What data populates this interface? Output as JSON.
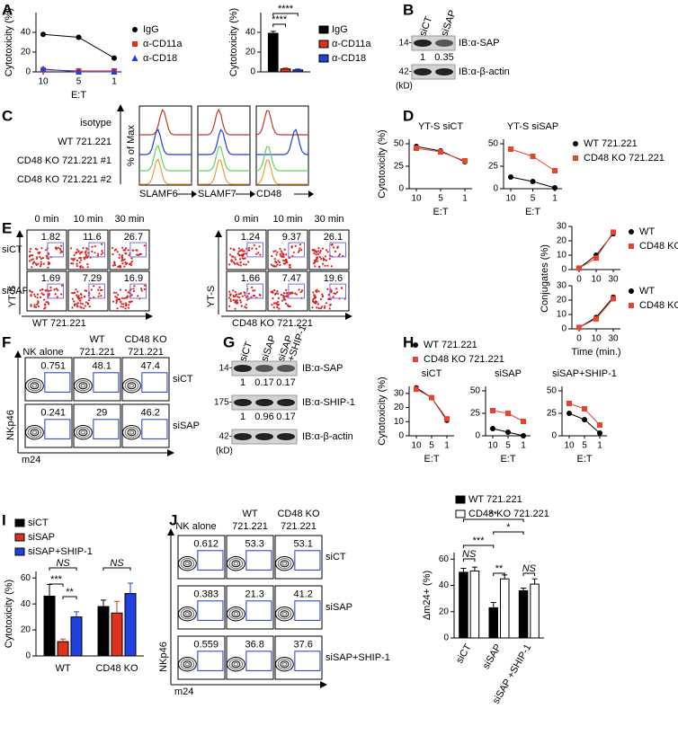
{
  "panel_labels": [
    "A",
    "B",
    "C",
    "D",
    "E",
    "F",
    "G",
    "H",
    "I",
    "J"
  ],
  "chart_data": [
    {
      "type": "line",
      "ylabel": "Cytotoxicity (%)",
      "xlabel": "E:T",
      "categories": [
        "10",
        "5",
        "1"
      ],
      "ylim": [
        0,
        60
      ],
      "yticks": [
        0,
        20,
        40
      ],
      "legend": true,
      "series": [
        {
          "name": "IgG",
          "color": "#000000",
          "marker": "circle",
          "values": [
            38,
            35,
            14
          ]
        },
        {
          "name": "α-CD11a",
          "color": "#e0301e",
          "marker": "square",
          "values": [
            2,
            1,
            1
          ]
        },
        {
          "name": "α-CD18",
          "color": "#2040e0",
          "marker": "triangle",
          "values": [
            3,
            0,
            0
          ]
        }
      ]
    },
    {
      "type": "bar",
      "ylabel": "Cytotoxicity (%)",
      "categories": [
        null
      ],
      "ylim": [
        0,
        60
      ],
      "yticks": [
        0,
        20,
        40
      ],
      "legend": true,
      "annotations": [
        "****",
        "****"
      ],
      "series": [
        {
          "name": "IgG",
          "color": "#000000",
          "values": [
            39
          ],
          "errors": [
            2
          ]
        },
        {
          "name": "α-CD11a",
          "color": "#e0301e",
          "values": [
            3
          ],
          "errors": [
            1
          ]
        },
        {
          "name": "α-CD18",
          "color": "#2040e0",
          "values": [
            2
          ],
          "errors": [
            1
          ]
        }
      ]
    },
    {
      "type": "line",
      "title": "YT-S siCT",
      "ylabel": "Cytotoxicity (%)",
      "xlabel": "E:T",
      "categories": [
        "10",
        "5",
        "1"
      ],
      "ylim": [
        0,
        55
      ],
      "yticks": [
        0,
        25,
        50
      ],
      "legend": false,
      "series": [
        {
          "color": "#000000",
          "marker": "circle",
          "values": [
            47,
            42,
            30
          ]
        },
        {
          "color": "#e8432e",
          "marker": "square",
          "values": [
            45,
            41,
            31
          ]
        }
      ]
    },
    {
      "type": "line",
      "title": "YT-S siSAP",
      "xlabel": "E:T",
      "categories": [
        "10",
        "5",
        "1"
      ],
      "ylim": [
        0,
        55
      ],
      "yticks": [
        0,
        25,
        50
      ],
      "legend": true,
      "series": [
        {
          "name": "WT 721.221",
          "color": "#000000",
          "marker": "circle",
          "values": [
            13,
            8,
            1
          ]
        },
        {
          "name": "CD48 KO 721.221",
          "color": "#e8432e",
          "marker": "square",
          "values": [
            44,
            36,
            20
          ]
        }
      ]
    },
    {
      "type": "line",
      "categories": [
        "0",
        "10",
        "30"
      ],
      "ylim": [
        0,
        30
      ],
      "yticks": [
        0,
        10,
        20,
        30
      ],
      "legend": true,
      "series": [
        {
          "name": "WT",
          "color": "#000000",
          "marker": "circle",
          "values": [
            1,
            10,
            25
          ]
        },
        {
          "name": "CD48 KO",
          "color": "#e8432e",
          "marker": "square",
          "values": [
            1,
            8,
            26
          ]
        }
      ]
    },
    {
      "type": "line",
      "ylabel": "Conjugates (%)",
      "xlabel": "Time (min.)",
      "categories": [
        "0",
        "10",
        "30"
      ],
      "ylim": [
        0,
        30
      ],
      "yticks": [
        0,
        10,
        20,
        30
      ],
      "legend": true,
      "series": [
        {
          "name": "WT",
          "color": "#000000",
          "marker": "circle",
          "values": [
            1,
            8,
            22
          ]
        },
        {
          "name": "CD48 KO",
          "color": "#e8432e",
          "marker": "square",
          "values": [
            1,
            7,
            21
          ]
        }
      ]
    },
    {
      "type": "line",
      "title": "siCT",
      "ylabel": "Cytotoxicity (%)",
      "xlabel": "E:T",
      "categories": [
        "10",
        "5",
        "1"
      ],
      "ylim": [
        0,
        35
      ],
      "yticks": [
        0,
        10,
        20,
        30
      ],
      "legend": true,
      "series": [
        {
          "name": "WT 721.221",
          "color": "#000000",
          "marker": "circle",
          "values": [
            34,
            27,
            11
          ]
        },
        {
          "name": "CD48 KO 721.221",
          "color": "#e8432e",
          "marker": "square",
          "values": [
            33,
            27,
            12
          ]
        }
      ]
    },
    {
      "type": "line",
      "title": "siSAP",
      "xlabel": "E:T",
      "categories": [
        "10",
        "5",
        "1"
      ],
      "ylim": [
        0,
        55
      ],
      "yticks": [
        0,
        25,
        50
      ],
      "legend": false,
      "series": [
        {
          "color": "#000000",
          "marker": "circle",
          "values": [
            8,
            4,
            0
          ]
        },
        {
          "color": "#e8432e",
          "marker": "square",
          "values": [
            28,
            25,
            16
          ]
        }
      ]
    },
    {
      "type": "line",
      "title": "siSAP+SHIP-1",
      "xlabel": "E:T",
      "categories": [
        "10",
        "5",
        "1"
      ],
      "ylim": [
        0,
        55
      ],
      "yticks": [
        0,
        25,
        50
      ],
      "legend": false,
      "series": [
        {
          "color": "#000000",
          "marker": "circle",
          "values": [
            25,
            18,
            3
          ]
        },
        {
          "color": "#e8432e",
          "marker": "square",
          "values": [
            36,
            30,
            12
          ]
        }
      ]
    },
    {
      "type": "bar",
      "ylabel": "Cytotoxicity (%)",
      "categories": [
        "WT",
        "CD48 KO"
      ],
      "ylim": [
        0,
        65
      ],
      "yticks": [
        0,
        20,
        40,
        60
      ],
      "legend": true,
      "annotations": [
        "NS",
        "***",
        "**",
        "NS"
      ],
      "series": [
        {
          "name": "siCT",
          "color": "#000000",
          "values": [
            46,
            38
          ],
          "errors": [
            9,
            5
          ]
        },
        {
          "name": "siSAP",
          "color": "#e0301e",
          "values": [
            11,
            33
          ],
          "errors": [
            2,
            9
          ]
        },
        {
          "name": "siSAP+SHIP-1",
          "color": "#2040e0",
          "values": [
            30,
            48
          ],
          "errors": [
            4,
            8
          ]
        }
      ]
    },
    {
      "type": "bar",
      "ylabel": "Δm24+ (%)",
      "categories": [
        "siCT",
        "siSAP",
        "siSAP +SHIP-1"
      ],
      "ylim": [
        0,
        65
      ],
      "yticks": [
        0,
        20,
        40,
        60
      ],
      "legend": true,
      "annotations": [
        "NS",
        "***",
        "**",
        "**",
        "*",
        "NS"
      ],
      "series": [
        {
          "name": "WT 721.221",
          "color": "#000000",
          "values": [
            50,
            23,
            36
          ],
          "errors": [
            3,
            4,
            2
          ]
        },
        {
          "name": "CD48 KO 721.221",
          "color": "#ffffff",
          "values": [
            51,
            45,
            41
          ],
          "errors": [
            3,
            3,
            4
          ]
        }
      ]
    }
  ],
  "blot_B": {
    "lanes": [
      [
        "siCT"
      ],
      [
        "siSAP"
      ]
    ],
    "rows": [
      {
        "marker": "14-",
        "label": "IB:α-SAP",
        "quant": [
          1,
          0.35
        ]
      },
      {
        "marker": "42-",
        "label": "IB:α-β-actin"
      }
    ],
    "unit": "(kD)"
  },
  "histogram_C": {
    "rows": [
      "isotype",
      "WT 721.221",
      "CD48 KO 721.221 #1",
      "CD48 KO 721.221 #2"
    ],
    "ylabel": "% of Max",
    "panels": [
      "SLAMF6",
      "SLAMF7",
      "CD48"
    ]
  },
  "flow_E": {
    "yaxis": "YT-S",
    "rows": [
      "siCT",
      "siSAP"
    ],
    "groups": [
      {
        "xaxis": "WT 721.221",
        "columns": [
          "0 min",
          "10 min",
          "30 min"
        ],
        "values": [
          [
            1.82,
            11.6,
            26.7
          ],
          [
            1.69,
            7.29,
            16.9
          ]
        ]
      },
      {
        "xaxis": "CD48 KO 721.221",
        "columns": [
          "0 min",
          "10 min",
          "30 min"
        ],
        "values": [
          [
            1.24,
            9.37,
            26.1
          ],
          [
            1.66,
            7.47,
            19.6
          ]
        ]
      }
    ]
  },
  "flow_F": {
    "columns": [
      [
        "NK alone"
      ],
      [
        "WT",
        "721.221"
      ],
      [
        "CD48 KO",
        "721.221"
      ]
    ],
    "rows": [
      "siCT",
      "siSAP"
    ],
    "values": [
      [
        0.751,
        48.1,
        47.4
      ],
      [
        0.241,
        29,
        46.2
      ]
    ],
    "yaxis": "NKp46",
    "xaxis": "m24"
  },
  "blot_G": {
    "lanes": [
      [
        "siCT"
      ],
      [
        "siSAP"
      ],
      [
        "siSAP",
        "+SHIP-1"
      ]
    ],
    "rows": [
      {
        "marker": "14-",
        "label": "IB:α-SAP",
        "quant": [
          1,
          0.17,
          0.17
        ]
      },
      {
        "marker": "175-",
        "label": "IB:α-SHIP-1",
        "quant": [
          1,
          0.96,
          0.17
        ]
      },
      {
        "marker": "42-",
        "label": "IB:α-β-actin"
      }
    ],
    "unit": "(kD)"
  },
  "flow_J": {
    "columns": [
      [
        "NK alone"
      ],
      [
        "WT",
        "721.221"
      ],
      [
        "CD48 KO",
        "721.221"
      ]
    ],
    "rows": [
      "siCT",
      "siSAP",
      "siSAP+SHIP-1"
    ],
    "values": [
      [
        0.612,
        53.3,
        53.1
      ],
      [
        0.383,
        21.3,
        41.2
      ],
      [
        0.559,
        36.8,
        37.6
      ]
    ],
    "yaxis": "NKp46",
    "xaxis": "m24"
  }
}
